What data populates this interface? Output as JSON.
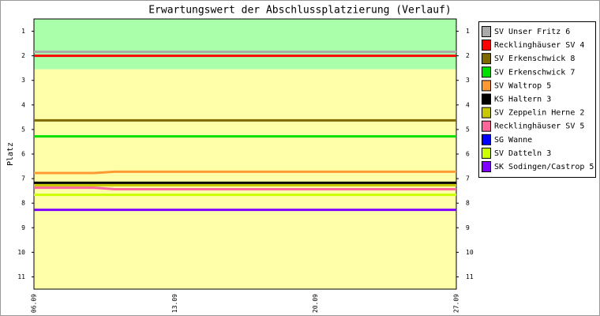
{
  "chart_data": {
    "type": "line",
    "title": "Erwartungswert der Abschlussplatzierung (Verlauf)",
    "y_label": "Platz",
    "categories": [
      "06.09",
      null,
      null,
      null,
      null,
      null,
      null,
      "13.09",
      null,
      null,
      null,
      null,
      null,
      null,
      "20.09",
      null,
      null,
      null,
      null,
      null,
      null,
      "27.09"
    ],
    "ylim": [
      11.5,
      0.5
    ],
    "yticks": [
      1,
      2,
      3,
      4,
      5,
      6,
      7,
      8,
      9,
      10,
      11
    ],
    "bands": [
      {
        "from": 0.5,
        "to": 2.55,
        "color": "#aaffaa"
      },
      {
        "from": 2.55,
        "to": 11.5,
        "color": "#ffffaa"
      }
    ],
    "series": [
      {
        "name": "SV Unser Fritz 6",
        "color": "#aaaaaa",
        "values": [
          1.84,
          1.84,
          1.84,
          1.84,
          1.84,
          1.84,
          1.84,
          1.84,
          1.84,
          1.84,
          1.84,
          1.84,
          1.84,
          1.84,
          1.84,
          1.84,
          1.84,
          1.84,
          1.84,
          1.84,
          1.84,
          1.84
        ]
      },
      {
        "name": "Recklinghäuser SV 4",
        "color": "#ff0000",
        "values": [
          2.0,
          2.0,
          2.0,
          2.0,
          2.0,
          2.0,
          2.0,
          2.0,
          2.0,
          2.0,
          2.0,
          2.0,
          2.0,
          2.0,
          2.0,
          2.0,
          2.0,
          2.0,
          2.0,
          2.0,
          2.0,
          2.0
        ]
      },
      {
        "name": "SV Erkenschwick 8",
        "color": "#7f6a00",
        "values": [
          4.63,
          4.63,
          4.63,
          4.63,
          4.63,
          4.63,
          4.63,
          4.63,
          4.63,
          4.63,
          4.63,
          4.63,
          4.63,
          4.63,
          4.63,
          4.63,
          4.63,
          4.63,
          4.63,
          4.63,
          4.63,
          4.63
        ]
      },
      {
        "name": "SV Erkenschwick 7",
        "color": "#00e000",
        "values": [
          5.28,
          5.28,
          5.28,
          5.28,
          5.28,
          5.28,
          5.28,
          5.28,
          5.28,
          5.28,
          5.28,
          5.28,
          5.28,
          5.28,
          5.28,
          5.28,
          5.28,
          5.28,
          5.28,
          5.28,
          5.28,
          5.28
        ]
      },
      {
        "name": "SV Waltrop 5",
        "color": "#ff9933",
        "values": [
          6.77,
          6.77,
          6.77,
          6.77,
          6.72,
          6.72,
          6.72,
          6.72,
          6.72,
          6.72,
          6.72,
          6.72,
          6.72,
          6.72,
          6.72,
          6.72,
          6.72,
          6.72,
          6.72,
          6.72,
          6.72,
          6.72
        ]
      },
      {
        "name": "KS Haltern 3",
        "color": "#000000",
        "values": [
          7.17,
          7.17,
          7.17,
          7.17,
          7.17,
          7.17,
          7.17,
          7.17,
          7.17,
          7.17,
          7.17,
          7.17,
          7.17,
          7.17,
          7.17,
          7.17,
          7.17,
          7.17,
          7.17,
          7.17,
          7.17,
          7.17
        ]
      },
      {
        "name": "SV Zeppelin Herne 2",
        "color": "#c8c800",
        "values": [
          7.27,
          7.27,
          7.27,
          7.27,
          7.27,
          7.27,
          7.27,
          7.27,
          7.27,
          7.27,
          7.27,
          7.27,
          7.27,
          7.27,
          7.27,
          7.27,
          7.27,
          7.27,
          7.27,
          7.27,
          7.27,
          7.27
        ]
      },
      {
        "name": "Recklinghäuser SV 5",
        "color": "#ff6699",
        "values": [
          7.37,
          7.37,
          7.37,
          7.37,
          7.43,
          7.43,
          7.43,
          7.43,
          7.43,
          7.43,
          7.43,
          7.43,
          7.43,
          7.43,
          7.43,
          7.43,
          7.43,
          7.43,
          7.43,
          7.43,
          7.43,
          7.43
        ]
      },
      {
        "name": "SG Wanne",
        "color": "#0000ff",
        "values": [
          null,
          null,
          null,
          null,
          null,
          null,
          null,
          null,
          null,
          null,
          null,
          null,
          null,
          null,
          null,
          null,
          null,
          null,
          null,
          null,
          null,
          null
        ]
      },
      {
        "name": "SV Datteln 3",
        "color": "#ccff00",
        "values": [
          7.66,
          7.66,
          7.66,
          7.66,
          7.66,
          7.66,
          7.66,
          7.66,
          7.66,
          7.66,
          7.66,
          7.66,
          7.66,
          7.66,
          7.66,
          7.66,
          7.66,
          7.66,
          7.66,
          7.66,
          7.66,
          7.66
        ]
      },
      {
        "name": "SK Sodingen/Castrop 5",
        "color": "#8000ff",
        "values": [
          8.27,
          8.27,
          8.27,
          8.27,
          8.27,
          8.27,
          8.27,
          8.27,
          8.27,
          8.27,
          8.27,
          8.27,
          8.27,
          8.27,
          8.27,
          8.27,
          8.27,
          8.27,
          8.27,
          8.27,
          8.27,
          8.27
        ]
      }
    ]
  }
}
